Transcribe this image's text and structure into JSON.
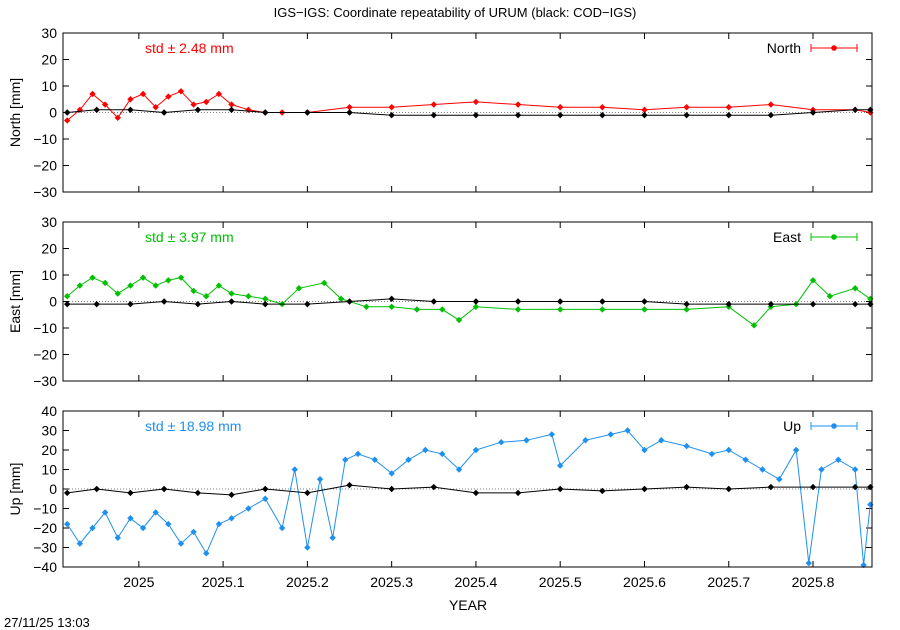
{
  "title": "IGS−IGS: Coordinate repeatability of URUM (black: COD−IGS)",
  "timestamp": "27/11/25 13:03",
  "xlabel": "YEAR",
  "x_ticks": [
    {
      "value": 2025.0,
      "label": "2025"
    },
    {
      "value": 2025.1,
      "label": "2025.1"
    },
    {
      "value": 2025.2,
      "label": "2025.2"
    },
    {
      "value": 2025.3,
      "label": "2025.3"
    },
    {
      "value": 2025.4,
      "label": "2025.4"
    },
    {
      "value": 2025.5,
      "label": "2025.5"
    },
    {
      "value": 2025.6,
      "label": "2025.6"
    },
    {
      "value": 2025.7,
      "label": "2025.7"
    },
    {
      "value": 2025.8,
      "label": "2025.8"
    }
  ],
  "chart_data": [
    {
      "type": "line",
      "title": "North",
      "ylabel": "North [mm]",
      "xlim": [
        2024.91,
        2025.87
      ],
      "ylim": [
        -30,
        30
      ],
      "yticks": [
        30,
        20,
        10,
        0,
        -10,
        -20,
        -30
      ],
      "ytick_labels": [
        "30",
        "20",
        "10",
        "0",
        "−10",
        "−20",
        "−30"
      ],
      "std_label": "std ± 2.48 mm",
      "legend": "North",
      "legend_position": "top-right",
      "series": [
        {
          "name": "North",
          "color": "#ff0000",
          "x": [
            2024.915,
            2024.93,
            2024.945,
            2024.96,
            2024.975,
            2024.99,
            2025.005,
            2025.02,
            2025.035,
            2025.05,
            2025.065,
            2025.08,
            2025.095,
            2025.11,
            2025.13,
            2025.15,
            2025.17,
            2025.2,
            2025.25,
            2025.3,
            2025.35,
            2025.4,
            2025.45,
            2025.5,
            2025.55,
            2025.6,
            2025.65,
            2025.7,
            2025.75,
            2025.8,
            2025.85,
            2025.868
          ],
          "y": [
            -3,
            1,
            7,
            3,
            -2,
            5,
            7,
            2,
            6,
            8,
            3,
            4,
            7,
            3,
            1,
            0,
            0,
            0,
            2,
            2,
            3,
            4,
            3,
            2,
            2,
            1,
            2,
            2,
            3,
            1,
            1,
            0
          ]
        },
        {
          "name": "COD−IGS",
          "color": "#000000",
          "x": [
            2024.915,
            2024.95,
            2024.99,
            2025.03,
            2025.07,
            2025.11,
            2025.15,
            2025.2,
            2025.25,
            2025.3,
            2025.35,
            2025.4,
            2025.45,
            2025.5,
            2025.55,
            2025.6,
            2025.65,
            2025.7,
            2025.75,
            2025.8,
            2025.85,
            2025.868
          ],
          "y": [
            0,
            1,
            1,
            0,
            1,
            1,
            0,
            0,
            0,
            -1,
            -1,
            -1,
            -1,
            -1,
            -1,
            -1,
            -1,
            -1,
            -1,
            0,
            1,
            1
          ]
        }
      ]
    },
    {
      "type": "line",
      "title": "East",
      "ylabel": "East [mm]",
      "xlim": [
        2024.91,
        2025.87
      ],
      "ylim": [
        -30,
        30
      ],
      "yticks": [
        30,
        20,
        10,
        0,
        -10,
        -20,
        -30
      ],
      "ytick_labels": [
        "30",
        "20",
        "10",
        "0",
        "−10",
        "−20",
        "−30"
      ],
      "std_label": "std ± 3.97 mm",
      "legend": "East",
      "legend_position": "top-right",
      "series": [
        {
          "name": "East",
          "color": "#00c000",
          "x": [
            2024.915,
            2024.93,
            2024.945,
            2024.96,
            2024.975,
            2024.99,
            2025.005,
            2025.02,
            2025.035,
            2025.05,
            2025.065,
            2025.08,
            2025.095,
            2025.11,
            2025.13,
            2025.15,
            2025.17,
            2025.19,
            2025.22,
            2025.24,
            2025.27,
            2025.3,
            2025.33,
            2025.36,
            2025.38,
            2025.4,
            2025.45,
            2025.5,
            2025.55,
            2025.6,
            2025.65,
            2025.7,
            2025.73,
            2025.75,
            2025.78,
            2025.8,
            2025.82,
            2025.85,
            2025.868
          ],
          "y": [
            2,
            6,
            9,
            7,
            3,
            6,
            9,
            6,
            8,
            9,
            4,
            2,
            6,
            3,
            2,
            1,
            -1,
            5,
            7,
            1,
            -2,
            -2,
            -3,
            -3,
            -7,
            -2,
            -3,
            -3,
            -3,
            -3,
            -3,
            -2,
            -9,
            -2,
            -1,
            8,
            2,
            5,
            1
          ]
        },
        {
          "name": "COD−IGS",
          "color": "#000000",
          "x": [
            2024.915,
            2024.95,
            2024.99,
            2025.03,
            2025.07,
            2025.11,
            2025.15,
            2025.2,
            2025.25,
            2025.3,
            2025.35,
            2025.4,
            2025.45,
            2025.5,
            2025.55,
            2025.6,
            2025.65,
            2025.7,
            2025.75,
            2025.8,
            2025.85,
            2025.868
          ],
          "y": [
            -1,
            -1,
            -1,
            0,
            -1,
            0,
            -1,
            -1,
            0,
            1,
            0,
            0,
            0,
            0,
            0,
            0,
            -1,
            -1,
            -1,
            -1,
            -1,
            -1
          ]
        }
      ]
    },
    {
      "type": "line",
      "title": "Up",
      "ylabel": "Up [mm]",
      "xlim": [
        2024.91,
        2025.87
      ],
      "ylim": [
        -40,
        40
      ],
      "yticks": [
        40,
        30,
        20,
        10,
        0,
        -10,
        -20,
        -30,
        -40
      ],
      "ytick_labels": [
        "40",
        "30",
        "20",
        "10",
        "0",
        "−10",
        "−20",
        "−30",
        "−40"
      ],
      "std_label": "std ± 18.98 mm",
      "legend": "Up",
      "legend_position": "top-right",
      "series": [
        {
          "name": "Up",
          "color": "#1e90f0",
          "x": [
            2024.915,
            2024.93,
            2024.945,
            2024.96,
            2024.975,
            2024.99,
            2025.005,
            2025.02,
            2025.035,
            2025.05,
            2025.065,
            2025.08,
            2025.095,
            2025.11,
            2025.13,
            2025.15,
            2025.17,
            2025.185,
            2025.2,
            2025.215,
            2025.23,
            2025.245,
            2025.26,
            2025.28,
            2025.3,
            2025.32,
            2025.34,
            2025.36,
            2025.38,
            2025.4,
            2025.43,
            2025.46,
            2025.49,
            2025.5,
            2025.53,
            2025.56,
            2025.58,
            2025.6,
            2025.62,
            2025.65,
            2025.68,
            2025.7,
            2025.72,
            2025.74,
            2025.76,
            2025.78,
            2025.795,
            2025.81,
            2025.83,
            2025.85,
            2025.86,
            2025.868
          ],
          "y": [
            -18,
            -28,
            -20,
            -12,
            -25,
            -15,
            -20,
            -12,
            -18,
            -28,
            -22,
            -33,
            -18,
            -15,
            -10,
            -5,
            -20,
            10,
            -30,
            5,
            -25,
            15,
            18,
            15,
            8,
            15,
            20,
            18,
            10,
            20,
            24,
            25,
            28,
            12,
            25,
            28,
            30,
            20,
            25,
            22,
            18,
            20,
            15,
            10,
            5,
            20,
            -38,
            10,
            15,
            10,
            -39,
            -8
          ]
        },
        {
          "name": "COD−IGS",
          "color": "#000000",
          "x": [
            2024.915,
            2024.95,
            2024.99,
            2025.03,
            2025.07,
            2025.11,
            2025.15,
            2025.2,
            2025.25,
            2025.3,
            2025.35,
            2025.4,
            2025.45,
            2025.5,
            2025.55,
            2025.6,
            2025.65,
            2025.7,
            2025.75,
            2025.8,
            2025.85,
            2025.868
          ],
          "y": [
            -2,
            0,
            -2,
            0,
            -2,
            -3,
            0,
            -2,
            2,
            0,
            1,
            -2,
            -2,
            0,
            -1,
            0,
            1,
            0,
            1,
            1,
            1,
            1
          ]
        }
      ]
    }
  ]
}
